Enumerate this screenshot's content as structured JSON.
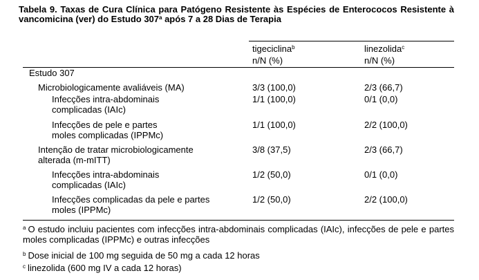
{
  "caption": {
    "text": "Tabela 9. Taxas de Cura Clínica para Patógeno Resistente às Espécies de Enterococos Resistente à vancomicina (ver) do Estudo 307",
    "sup": "a",
    "text_end": " após 7 a 28 Dias de Terapia"
  },
  "header": {
    "col1_name": "tigeciclina",
    "col1_sup": "b",
    "col2_name": "linezolida",
    "col2_sup": "c",
    "unit1": "n/N (%)",
    "unit2": "n/N (%)"
  },
  "rows": [
    {
      "line1": "Estudo 307",
      "line2": "",
      "v1": "",
      "v2": ""
    },
    {
      "line1": "Microbiologicamente avaliáveis (MA)",
      "line2": "",
      "v1": "3/3 (100,0)",
      "v2": "2/3 (66,7)"
    },
    {
      "line1": "Infecções intra-abdominais",
      "line2": "complicadas (IAIc)",
      "v1": "1/1 (100,0)",
      "v2": "0/1 (0,0)"
    },
    {
      "line1": "Infecções de pele e partes",
      "line2": "moles complicadas (IPPMc)",
      "v1": "1/1 (100,0)",
      "v2": "2/2 (100,0)"
    },
    {
      "line1": "Intenção de tratar microbiologicamente",
      "line2": "alterada (m-mITT)",
      "v1": "3/8 (37,5)",
      "v2": "2/3 (66,7)"
    },
    {
      "line1": "Infecções intra-abdominais",
      "line2": "complicadas (IAIc)",
      "v1": "1/2 (50,0)",
      "v2": "0/1 (0,0)"
    },
    {
      "line1": "Infecções complicadas da pele e partes",
      "line2": "moles (IPPMc)",
      "v1": "1/2 (50,0)",
      "v2": "2/2 (100,0)"
    }
  ],
  "footnotes": [
    {
      "mark": "a",
      "text": "O estudo incluiu pacientes com infecções intra-abdominais complicadas (IAIc), infecções de pele e partes moles complicadas (IPPMc) e outras infecções"
    },
    {
      "mark": "b",
      "text": "Dose inicial de 100 mg seguida de 50 mg a cada 12 horas"
    },
    {
      "mark": "c",
      "text": "linezolida (600 mg IV a cada 12 horas)"
    }
  ]
}
